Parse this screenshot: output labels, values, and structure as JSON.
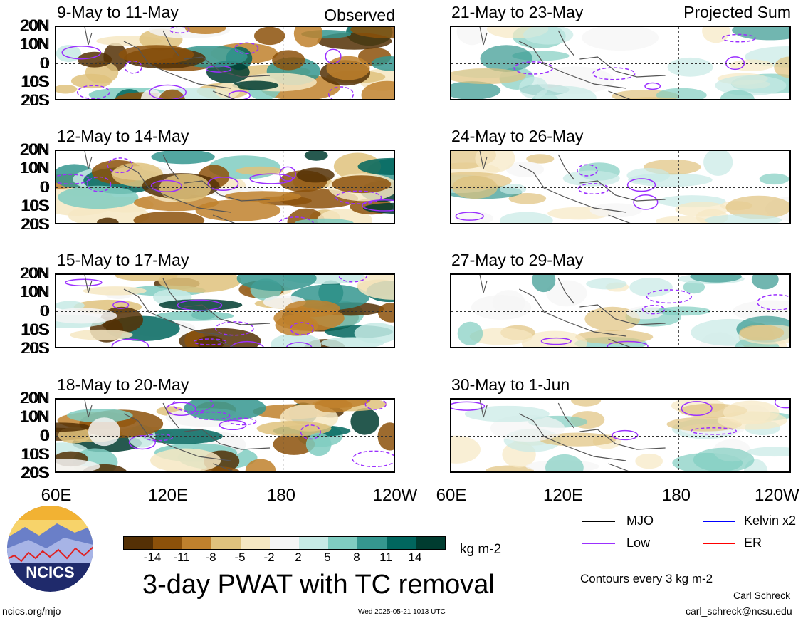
{
  "left_header": "Observed",
  "right_header": "Projected Sum",
  "lat_labels": [
    "20N",
    "10N",
    "0",
    "10S",
    "20S"
  ],
  "lon_labels": [
    "60E",
    "120E",
    "180",
    "120W"
  ],
  "panels_left": [
    "9-May to 11-May",
    "12-May to 14-May",
    "15-May to 17-May",
    "18-May to 20-May"
  ],
  "panels_right": [
    "21-May to 23-May",
    "24-May to 26-May",
    "27-May to 29-May",
    "30-May to 1-Jun"
  ],
  "colorbar": {
    "labels": [
      "-14",
      "-11",
      "-8",
      "-5",
      "-2",
      "2",
      "5",
      "8",
      "11",
      "14"
    ],
    "colors": [
      "#543005",
      "#8c510a",
      "#bf812d",
      "#dfc27d",
      "#f6e8c3",
      "#f5f5f5",
      "#c7eae5",
      "#80cdc1",
      "#35978f",
      "#01665e",
      "#003c30"
    ],
    "units": "kg m-2"
  },
  "main_title": "3-day PWAT with TC removal",
  "legend": {
    "items": [
      {
        "label": "MJO",
        "color": "#000000"
      },
      {
        "label": "Kelvin x2",
        "color": "#0000ff"
      },
      {
        "label": "Low",
        "color": "#9b30ff"
      },
      {
        "label": "ER",
        "color": "#ff0000"
      }
    ],
    "contours_note": "Contours every 3 kg m-2"
  },
  "logo_text": "NCICS",
  "credit_name": "Carl Schreck",
  "credit_email": "carl_schreck@ncsu.edu",
  "site": "ncics.org/mjo",
  "timestamp": "Wed 2025-05-21 1013 UTC",
  "chart_data": {
    "type": "heatmap",
    "variable": "3-day PWAT with TC removal",
    "units": "kg m-2",
    "x_range": [
      "60E",
      "120W"
    ],
    "y_range": [
      "20S",
      "20N"
    ],
    "panels": [
      {
        "period": "9-May to 11-May",
        "kind": "Observed"
      },
      {
        "period": "12-May to 14-May",
        "kind": "Observed"
      },
      {
        "period": "15-May to 17-May",
        "kind": "Observed"
      },
      {
        "period": "18-May to 20-May",
        "kind": "Observed"
      },
      {
        "period": "21-May to 23-May",
        "kind": "Projected Sum"
      },
      {
        "period": "24-May to 26-May",
        "kind": "Projected Sum"
      },
      {
        "period": "27-May to 29-May",
        "kind": "Projected Sum"
      },
      {
        "period": "30-May to 1-Jun",
        "kind": "Projected Sum"
      }
    ]
  }
}
